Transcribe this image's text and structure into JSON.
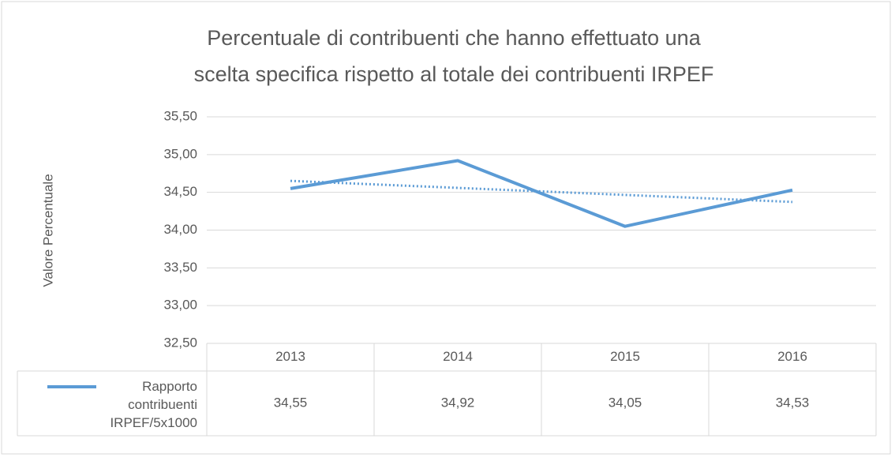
{
  "chart_data": {
    "type": "line",
    "title": [
      "Percentuale di contribuenti che hanno effettuato una",
      "scelta specifica rispetto al totale dei contribuenti IRPEF"
    ],
    "ylabel": "Valore Percentuale",
    "categories": [
      "2013",
      "2014",
      "2015",
      "2016"
    ],
    "series": [
      {
        "name": "Rapporto contribuenti IRPEF/5x1000",
        "color": "#5b9bd5",
        "values": [
          34.55,
          34.92,
          34.05,
          34.53
        ],
        "value_labels": [
          "34,55",
          "34,92",
          "34,05",
          "34,53"
        ]
      }
    ],
    "ylim": [
      32.5,
      35.5
    ],
    "yticks": [
      {
        "value": 32.5,
        "label": "32,50"
      },
      {
        "value": 33,
        "label": "33,00"
      },
      {
        "value": 33.5,
        "label": "33,50"
      },
      {
        "value": 34,
        "label": "34,00"
      },
      {
        "value": 34.5,
        "label": "34,50"
      },
      {
        "value": 35,
        "label": "35,00"
      },
      {
        "value": 35.5,
        "label": "35,50"
      }
    ],
    "grid": true,
    "trendline": "linear",
    "data_table": true
  }
}
